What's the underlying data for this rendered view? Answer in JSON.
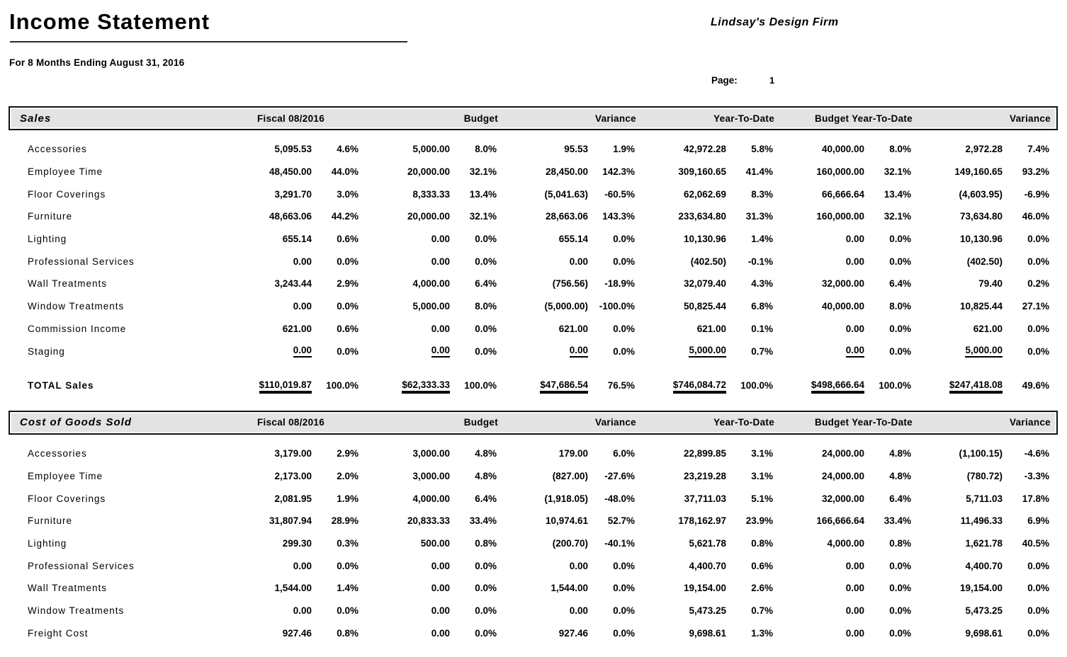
{
  "report": {
    "title": "Income Statement",
    "subtitle": "For 8 Months Ending August 31, 2016",
    "company": "Lindsay's Design Firm",
    "page_label": "Page:",
    "page_number": "1"
  },
  "colors": {
    "section_bar_bg": "#e3e3e3",
    "border": "#141414",
    "text": "#000000"
  },
  "columns": [
    "Fiscal 08/2016",
    "Budget",
    "Variance",
    "Year-To-Date",
    "Budget Year-To-Date",
    "Variance"
  ],
  "sections": [
    {
      "name": "Sales",
      "rows": [
        {
          "label": "Accessories",
          "cells": [
            "5,095.53",
            "4.6%",
            "5,000.00",
            "8.0%",
            "95.53",
            "1.9%",
            "42,972.28",
            "5.8%",
            "40,000.00",
            "8.0%",
            "2,972.28",
            "7.4%"
          ]
        },
        {
          "label": "Employee Time",
          "cells": [
            "48,450.00",
            "44.0%",
            "20,000.00",
            "32.1%",
            "28,450.00",
            "142.3%",
            "309,160.65",
            "41.4%",
            "160,000.00",
            "32.1%",
            "149,160.65",
            "93.2%"
          ]
        },
        {
          "label": "Floor Coverings",
          "cells": [
            "3,291.70",
            "3.0%",
            "8,333.33",
            "13.4%",
            "(5,041.63)",
            "-60.5%",
            "62,062.69",
            "8.3%",
            "66,666.64",
            "13.4%",
            "(4,603.95)",
            "-6.9%"
          ]
        },
        {
          "label": "Furniture",
          "cells": [
            "48,663.06",
            "44.2%",
            "20,000.00",
            "32.1%",
            "28,663.06",
            "143.3%",
            "233,634.80",
            "31.3%",
            "160,000.00",
            "32.1%",
            "73,634.80",
            "46.0%"
          ]
        },
        {
          "label": "Lighting",
          "cells": [
            "655.14",
            "0.6%",
            "0.00",
            "0.0%",
            "655.14",
            "0.0%",
            "10,130.96",
            "1.4%",
            "0.00",
            "0.0%",
            "10,130.96",
            "0.0%"
          ]
        },
        {
          "label": "Professional Services",
          "cells": [
            "0.00",
            "0.0%",
            "0.00",
            "0.0%",
            "0.00",
            "0.0%",
            "(402.50)",
            "-0.1%",
            "0.00",
            "0.0%",
            "(402.50)",
            "0.0%"
          ]
        },
        {
          "label": "Wall Treatments",
          "cells": [
            "3,243.44",
            "2.9%",
            "4,000.00",
            "6.4%",
            "(756.56)",
            "-18.9%",
            "32,079.40",
            "4.3%",
            "32,000.00",
            "6.4%",
            "79.40",
            "0.2%"
          ]
        },
        {
          "label": "Window Treatments",
          "cells": [
            "0.00",
            "0.0%",
            "5,000.00",
            "8.0%",
            "(5,000.00)",
            "-100.0%",
            "50,825.44",
            "6.8%",
            "40,000.00",
            "8.0%",
            "10,825.44",
            "27.1%"
          ]
        },
        {
          "label": "Commission Income",
          "cells": [
            "621.00",
            "0.6%",
            "0.00",
            "0.0%",
            "621.00",
            "0.0%",
            "621.00",
            "0.1%",
            "0.00",
            "0.0%",
            "621.00",
            "0.0%"
          ]
        },
        {
          "label": "Staging",
          "cells": [
            "0.00",
            "0.0%",
            "0.00",
            "0.0%",
            "0.00",
            "0.0%",
            "5,000.00",
            "0.7%",
            "0.00",
            "0.0%",
            "5,000.00",
            "0.0%"
          ],
          "underline_amounts": true
        }
      ],
      "total": {
        "label": "TOTAL Sales",
        "cells": [
          "$110,019.87",
          "100.0%",
          "$62,333.33",
          "100.0%",
          "$47,686.54",
          "76.5%",
          "$746,084.72",
          "100.0%",
          "$498,666.64",
          "100.0%",
          "$247,418.08",
          "49.6%"
        ]
      }
    },
    {
      "name": "Cost of Goods Sold",
      "rows": [
        {
          "label": "Accessories",
          "cells": [
            "3,179.00",
            "2.9%",
            "3,000.00",
            "4.8%",
            "179.00",
            "6.0%",
            "22,899.85",
            "3.1%",
            "24,000.00",
            "4.8%",
            "(1,100.15)",
            "-4.6%"
          ]
        },
        {
          "label": "Employee Time",
          "cells": [
            "2,173.00",
            "2.0%",
            "3,000.00",
            "4.8%",
            "(827.00)",
            "-27.6%",
            "23,219.28",
            "3.1%",
            "24,000.00",
            "4.8%",
            "(780.72)",
            "-3.3%"
          ]
        },
        {
          "label": "Floor Coverings",
          "cells": [
            "2,081.95",
            "1.9%",
            "4,000.00",
            "6.4%",
            "(1,918.05)",
            "-48.0%",
            "37,711.03",
            "5.1%",
            "32,000.00",
            "6.4%",
            "5,711.03",
            "17.8%"
          ]
        },
        {
          "label": "Furniture",
          "cells": [
            "31,807.94",
            "28.9%",
            "20,833.33",
            "33.4%",
            "10,974.61",
            "52.7%",
            "178,162.97",
            "23.9%",
            "166,666.64",
            "33.4%",
            "11,496.33",
            "6.9%"
          ]
        },
        {
          "label": "Lighting",
          "cells": [
            "299.30",
            "0.3%",
            "500.00",
            "0.8%",
            "(200.70)",
            "-40.1%",
            "5,621.78",
            "0.8%",
            "4,000.00",
            "0.8%",
            "1,621.78",
            "40.5%"
          ]
        },
        {
          "label": "Professional Services",
          "cells": [
            "0.00",
            "0.0%",
            "0.00",
            "0.0%",
            "0.00",
            "0.0%",
            "4,400.70",
            "0.6%",
            "0.00",
            "0.0%",
            "4,400.70",
            "0.0%"
          ]
        },
        {
          "label": "Wall Treatments",
          "cells": [
            "1,544.00",
            "1.4%",
            "0.00",
            "0.0%",
            "1,544.00",
            "0.0%",
            "19,154.00",
            "2.6%",
            "0.00",
            "0.0%",
            "19,154.00",
            "0.0%"
          ]
        },
        {
          "label": "Window Treatments",
          "cells": [
            "0.00",
            "0.0%",
            "0.00",
            "0.0%",
            "0.00",
            "0.0%",
            "5,473.25",
            "0.7%",
            "0.00",
            "0.0%",
            "5,473.25",
            "0.0%"
          ]
        },
        {
          "label": "Freight Cost",
          "cells": [
            "927.46",
            "0.8%",
            "0.00",
            "0.0%",
            "927.46",
            "0.0%",
            "9,698.61",
            "1.3%",
            "0.00",
            "0.0%",
            "9,698.61",
            "0.0%"
          ]
        }
      ],
      "total": null
    }
  ]
}
